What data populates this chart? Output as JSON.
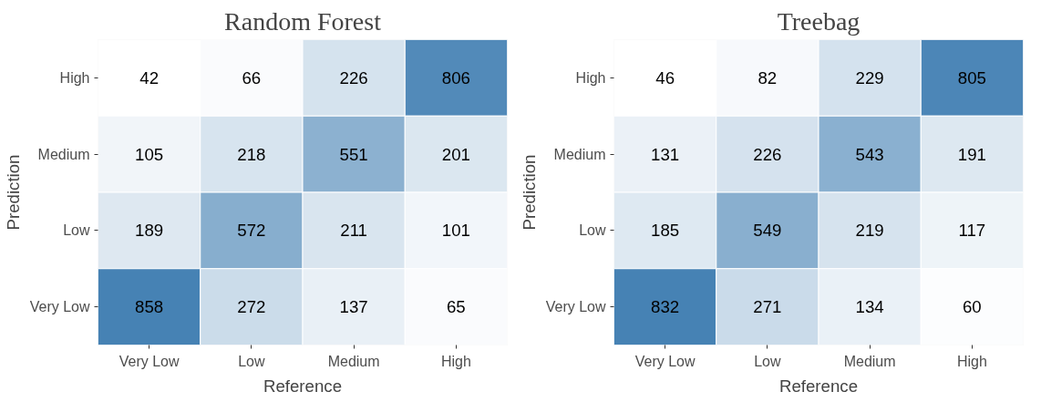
{
  "chart_data": [
    {
      "type": "heatmap",
      "title": "Random Forest",
      "xlabel": "Reference",
      "ylabel": "Prediction",
      "categories": [
        "Very Low",
        "Low",
        "Medium",
        "High"
      ],
      "y_categories": [
        "High",
        "Medium",
        "Low",
        "Very Low"
      ],
      "data_labels": true,
      "cells": [
        [
          42,
          66,
          226,
          806
        ],
        [
          105,
          218,
          551,
          201
        ],
        [
          189,
          572,
          211,
          101
        ],
        [
          858,
          272,
          137,
          65
        ]
      ]
    },
    {
      "type": "heatmap",
      "title": "Treebag",
      "xlabel": "Reference",
      "ylabel": "Prediction",
      "categories": [
        "Very Low",
        "Low",
        "Medium",
        "High"
      ],
      "y_categories": [
        "High",
        "Medium",
        "Low",
        "Very Low"
      ],
      "data_labels": true,
      "cells": [
        [
          46,
          82,
          229,
          805
        ],
        [
          131,
          226,
          543,
          191
        ],
        [
          185,
          549,
          219,
          117
        ],
        [
          832,
          271,
          134,
          60
        ]
      ]
    }
  ]
}
